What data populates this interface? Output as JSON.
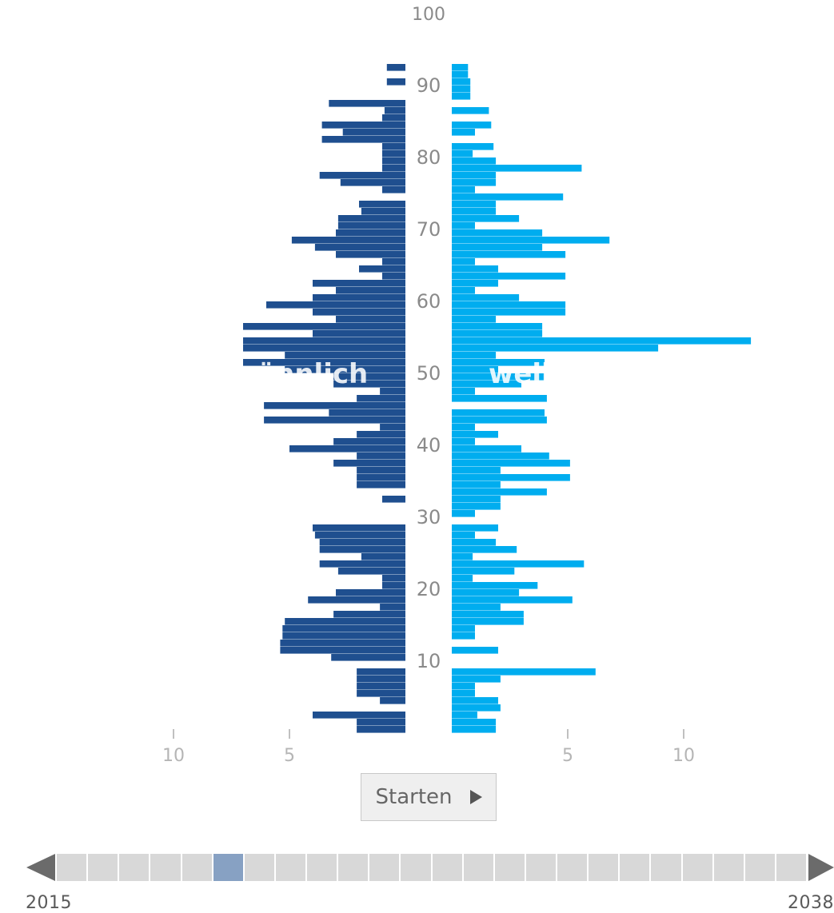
{
  "chart_data": {
    "type": "bar",
    "subtype": "population-pyramid",
    "male_label": "männlich",
    "female_label": "weiblich",
    "age_axis_ticks": [
      10,
      20,
      30,
      40,
      50,
      60,
      70,
      80,
      90,
      100
    ],
    "value_axis_ticks": {
      "left": [
        "10",
        "5"
      ],
      "right": [
        "5",
        "10"
      ]
    },
    "xlim": [
      0,
      10
    ],
    "ylim": [
      0,
      100
    ],
    "ages": [
      0,
      1,
      2,
      3,
      4,
      5,
      6,
      7,
      8,
      9,
      10,
      11,
      12,
      13,
      14,
      15,
      16,
      17,
      18,
      19,
      20,
      21,
      22,
      23,
      24,
      25,
      26,
      27,
      28,
      29,
      30,
      31,
      32,
      33,
      34,
      35,
      36,
      37,
      38,
      39,
      40,
      41,
      42,
      43,
      44,
      45,
      46,
      47,
      48,
      49,
      50,
      51,
      52,
      53,
      54,
      55,
      56,
      57,
      58,
      59,
      60,
      61,
      62,
      63,
      64,
      65,
      66,
      67,
      68,
      69,
      70,
      71,
      72,
      73,
      74,
      75,
      76,
      77,
      78,
      79,
      80,
      81,
      82,
      83,
      84,
      85,
      86,
      87,
      88,
      89,
      90,
      91,
      92
    ],
    "series": [
      {
        "name": "männlich",
        "color": "#1f4f8f",
        "values": [
          2.1,
          2.1,
          4.0,
          0,
          1.1,
          2.1,
          2.1,
          2.1,
          2.1,
          0,
          3.2,
          5.4,
          5.4,
          5.3,
          5.3,
          5.2,
          3.1,
          1.1,
          4.2,
          3.0,
          1.0,
          1.0,
          2.9,
          3.7,
          1.9,
          3.7,
          3.7,
          3.9,
          4.0,
          0,
          0,
          0,
          1.0,
          0,
          2.1,
          2.1,
          2.1,
          3.1,
          2.1,
          5.0,
          3.1,
          2.1,
          1.1,
          6.1,
          3.3,
          6.1,
          2.1,
          1.1,
          3.1,
          3.1,
          5.2,
          7.0,
          5.2,
          7.0,
          7.0,
          4.0,
          7.0,
          3.0,
          4.0,
          6.0,
          4.0,
          3.0,
          4.0,
          1.0,
          2.0,
          1.0,
          3.0,
          3.9,
          4.9,
          3.0,
          2.9,
          2.9,
          1.9,
          2.0,
          0,
          1.0,
          2.8,
          3.7,
          1.0,
          1.0,
          1.0,
          1.0,
          3.6,
          2.7,
          3.6,
          1.0,
          0.9,
          3.3,
          0,
          0,
          0.8,
          0,
          0.8,
          0.7
        ]
      },
      {
        "name": "weiblich",
        "color": "#00adef",
        "values": [
          1.9,
          1.9,
          1.1,
          2.1,
          2.0,
          1.0,
          1.0,
          2.1,
          6.2,
          0,
          0,
          2.0,
          0,
          1.0,
          1.0,
          3.1,
          3.1,
          2.1,
          5.2,
          2.9,
          3.7,
          0.9,
          2.7,
          5.7,
          0.9,
          2.8,
          1.9,
          1.0,
          2.0,
          0,
          1.0,
          2.1,
          2.1,
          4.1,
          2.1,
          5.1,
          2.1,
          5.1,
          4.2,
          3.0,
          1.0,
          2.0,
          1.0,
          4.1,
          4.0,
          0,
          4.1,
          1.0,
          3.0,
          4.0,
          2.0,
          4.0,
          1.9,
          8.9,
          12.9,
          3.9,
          3.9,
          1.9,
          4.9,
          4.9,
          2.9,
          1.0,
          2.0,
          4.9,
          2.0,
          1.0,
          4.9,
          3.9,
          6.8,
          3.9,
          1.0,
          2.9,
          1.9,
          1.9,
          4.8,
          1.0,
          1.9,
          1.9,
          5.6,
          1.9,
          0.9,
          1.8,
          0,
          1.0,
          1.7,
          0,
          1.6,
          0,
          0.8,
          0.8,
          0.8,
          0.7,
          0.7
        ]
      }
    ],
    "grid": false,
    "legend": "inline-labels"
  },
  "controls": {
    "start_label": "Starten",
    "play_icon": "play-icon"
  },
  "timeline": {
    "start_year": "2015",
    "end_year": "2038",
    "segment_count": 24,
    "active_index": 5,
    "active_color": "#87a1c3",
    "inactive_color": "#d8d8d8"
  }
}
